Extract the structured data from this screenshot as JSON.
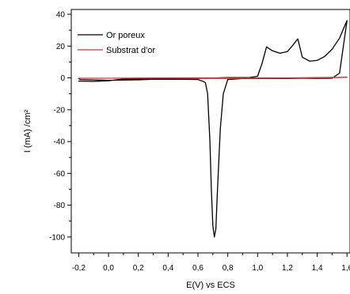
{
  "chart_data": {
    "type": "line",
    "title": "",
    "xlabel": "E(V) vs ECS",
    "ylabel": "I (mA) /cm²",
    "xlim": [
      -0.25,
      1.62
    ],
    "ylim": [
      -110,
      43
    ],
    "x_ticks": [
      -0.2,
      0.0,
      0.2,
      0.4,
      0.6,
      0.8,
      1.0,
      1.2,
      1.4,
      1.6
    ],
    "x_tick_labels": [
      "-0,2",
      "0,0",
      "0,2",
      "0,4",
      "0,6",
      "0,8",
      "1,0",
      "1,2",
      "1,4",
      "1,6"
    ],
    "y_ticks": [
      40,
      20,
      0,
      -20,
      -40,
      -60,
      -80,
      -100
    ],
    "y_tick_labels": [
      "40",
      "20",
      "0",
      "-20",
      "-40",
      "-60",
      "-80",
      "-100"
    ],
    "grid": false,
    "legend_position": "top-left",
    "series": [
      {
        "name": "Or poreux",
        "color": "#000000",
        "x": [
          -0.2,
          -0.19,
          0.0,
          0.2,
          0.4,
          0.6,
          0.8,
          0.95,
          1.0,
          1.03,
          1.06,
          1.1,
          1.15,
          1.2,
          1.24,
          1.27,
          1.3,
          1.35,
          1.4,
          1.45,
          1.5,
          1.55,
          1.59,
          1.6,
          1.55,
          1.5,
          1.4,
          1.3,
          1.2,
          1.1,
          1.0,
          0.9,
          0.8,
          0.77,
          0.75,
          0.73,
          0.72,
          0.71,
          0.7,
          0.69,
          0.68,
          0.665,
          0.65,
          0.63,
          0.6,
          0.5,
          0.3,
          0.1,
          0.0,
          -0.1,
          -0.2
        ],
        "y": [
          -0.5,
          -1,
          -1.5,
          -1.2,
          -0.5,
          -0.3,
          0.2,
          0.3,
          1,
          9,
          19.5,
          17,
          15.5,
          16.5,
          21,
          24.5,
          13,
          10.5,
          11,
          13.5,
          18,
          25,
          34,
          36,
          3,
          -0.2,
          -0.3,
          -0.2,
          -0.3,
          -0.3,
          -0.3,
          -0.4,
          -1,
          -10,
          -32,
          -72,
          -95,
          -100,
          -93,
          -70,
          -40,
          -10,
          -3,
          -2,
          -1,
          -0.9,
          -0.8,
          -0.7,
          -1.8,
          -2.2,
          -2
        ]
      },
      {
        "name": "Substrat d'or",
        "color": "#e0302a",
        "x": [
          -0.2,
          0.0,
          0.2,
          0.4,
          0.6,
          0.8,
          1.0,
          1.2,
          1.4,
          1.6,
          1.4,
          1.2,
          1.0,
          0.8,
          0.6,
          0.4,
          0.2,
          0.0,
          -0.2
        ],
        "y": [
          -0.2,
          -0.2,
          -0.1,
          0,
          0,
          0,
          0,
          0,
          0.2,
          0.4,
          0,
          0,
          -0.1,
          -0.3,
          -0.3,
          -0.2,
          -0.2,
          -0.2,
          -0.2
        ]
      }
    ]
  }
}
